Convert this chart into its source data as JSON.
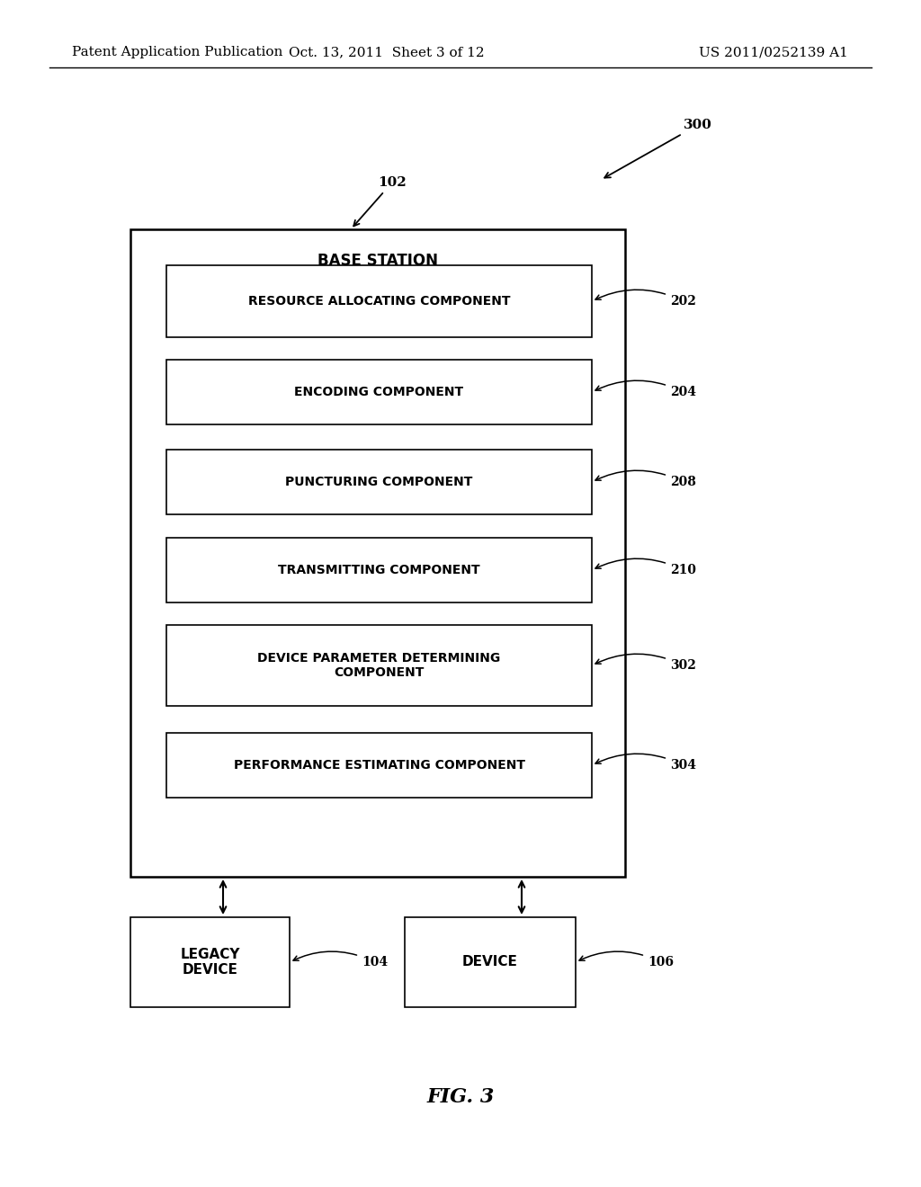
{
  "header_left": "Patent Application Publication",
  "header_center": "Oct. 13, 2011  Sheet 3 of 12",
  "header_right": "US 2011/0252139 A1",
  "fig_label": "FIG. 3",
  "outer_box_label": "102",
  "outer_box_title": "BASE STATION",
  "diagram_label": "300",
  "components": [
    {
      "label": "202",
      "text": "RESOURCE ALLOCATING COMPONENT"
    },
    {
      "label": "204",
      "text": "ENCODING COMPONENT"
    },
    {
      "label": "208",
      "text": "PUNCTURING COMPONENT"
    },
    {
      "label": "210",
      "text": "TRANSMITTING COMPONENT"
    },
    {
      "label": "302",
      "text": "DEVICE PARAMETER DETERMINING\nCOMPONENT"
    },
    {
      "label": "304",
      "text": "PERFORMANCE ESTIMATING COMPONENT"
    }
  ],
  "bottom_boxes": [
    {
      "label": "104",
      "text": "LEGACY\nDEVICE"
    },
    {
      "label": "106",
      "text": "DEVICE"
    }
  ],
  "bg_color": "#ffffff"
}
